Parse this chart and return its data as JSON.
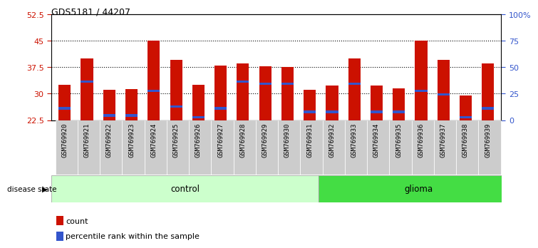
{
  "title": "GDS5181 / 44207",
  "samples": [
    "GSM769920",
    "GSM769921",
    "GSM769922",
    "GSM769923",
    "GSM769924",
    "GSM769925",
    "GSM769926",
    "GSM769927",
    "GSM769928",
    "GSM769929",
    "GSM769930",
    "GSM769931",
    "GSM769932",
    "GSM769933",
    "GSM769934",
    "GSM769935",
    "GSM769936",
    "GSM769937",
    "GSM769938",
    "GSM769939"
  ],
  "count_values": [
    32.5,
    40.0,
    31.0,
    31.2,
    45.0,
    39.5,
    32.5,
    38.0,
    38.5,
    37.8,
    37.5,
    31.0,
    32.3,
    40.0,
    32.2,
    31.5,
    45.0,
    39.5,
    29.5,
    38.5
  ],
  "percentile_positions": [
    25.5,
    33.0,
    23.5,
    23.5,
    30.5,
    26.0,
    23.0,
    25.5,
    33.0,
    32.5,
    32.5,
    24.5,
    24.5,
    32.5,
    24.5,
    24.5,
    30.5,
    29.5,
    23.0,
    25.5
  ],
  "y_min": 22.5,
  "y_max": 52.5,
  "y_ticks_left": [
    22.5,
    30.0,
    37.5,
    45.0,
    52.5
  ],
  "y_ticks_right_labels": [
    "0",
    "25",
    "50",
    "75",
    "100%"
  ],
  "control_count": 12,
  "glioma_count": 8,
  "bar_color": "#cc1100",
  "blue_color": "#3355cc",
  "control_bg": "#ccffcc",
  "glioma_bg": "#44dd44",
  "tick_bg": "#cccccc",
  "dotted_levels": [
    30.0,
    37.5,
    45.0
  ],
  "bar_width": 0.55,
  "legend_count_label": "count",
  "legend_pct_label": "percentile rank within the sample",
  "disease_state_label": "disease state",
  "control_label": "control",
  "glioma_label": "glioma"
}
